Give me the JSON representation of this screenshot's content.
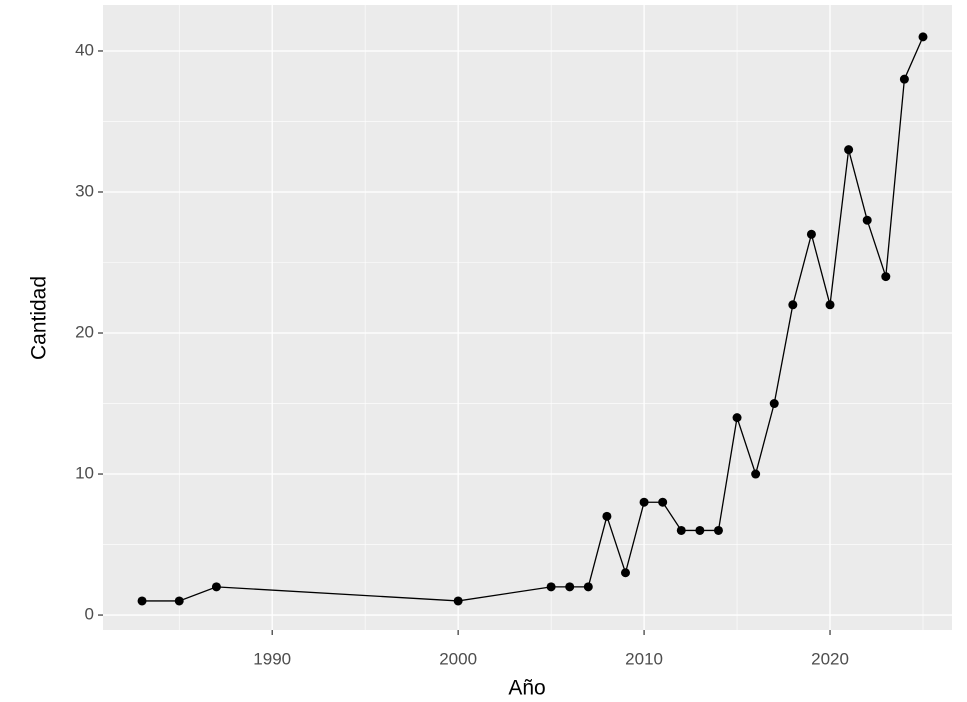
{
  "chart_data": {
    "type": "line",
    "x_label": "Año",
    "y_label": "Cantidad",
    "x": [
      1983,
      1985,
      1987,
      2000,
      2005,
      2006,
      2007,
      2008,
      2009,
      2010,
      2011,
      2012,
      2013,
      2014,
      2015,
      2016,
      2017,
      2018,
      2019,
      2020,
      2021,
      2022,
      2023,
      2024,
      2025
    ],
    "values": [
      1,
      1,
      2,
      1,
      2,
      2,
      2,
      7,
      3,
      8,
      8,
      6,
      6,
      6,
      14,
      10,
      15,
      22,
      27,
      22,
      33,
      28,
      24,
      38,
      41
    ],
    "color": "#000000",
    "xlim": [
      1980.9,
      2026.56
    ],
    "ylim": [
      -1.06,
      43.26
    ],
    "xticks": [
      1990,
      2000,
      2010,
      2020
    ],
    "yticks": [
      0,
      10,
      20,
      30,
      40
    ],
    "x_minor_breaks": [
      1985,
      1995,
      2005,
      2015,
      2025
    ],
    "y_minor_breaks": [
      5,
      15,
      25,
      35
    ],
    "grid": true
  }
}
